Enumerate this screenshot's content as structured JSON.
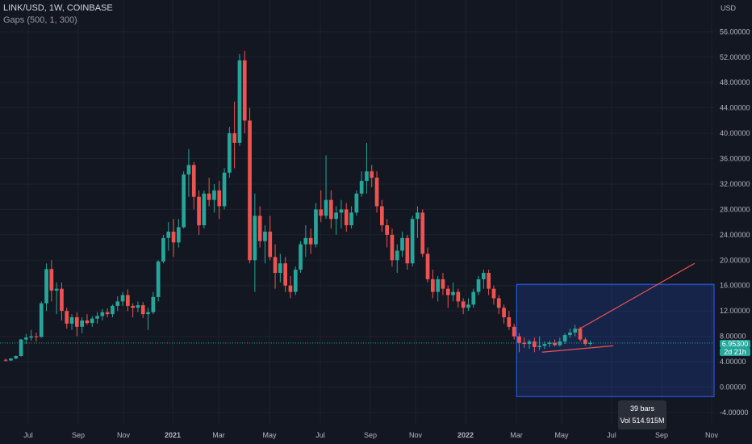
{
  "header": {
    "title": "LINK/USD, 1W, COINBASE",
    "indicator": "Gaps (500, 1, 300)"
  },
  "price_axis": {
    "currency": "USD",
    "last_price": "6.95300",
    "countdown": "2d 21h"
  },
  "range_tooltip": {
    "bars": "39 bars",
    "volume": "Vol 514.915M"
  },
  "colors": {
    "up": "#26a69a",
    "down": "#ef5350",
    "range_box": "#2962ff",
    "background": "#131722"
  },
  "chart_data": {
    "type": "candlestick",
    "title": "LINK/USD, 1W, COINBASE",
    "ylabel": "USD",
    "ylim": [
      -4,
      58
    ],
    "y_ticks": [
      "56.00000",
      "52.00000",
      "48.00000",
      "44.00000",
      "40.00000",
      "36.00000",
      "32.00000",
      "28.00000",
      "24.00000",
      "20.00000",
      "16.00000",
      "12.00000",
      "8.00000",
      "4.00000",
      "0.00000",
      "-4.00000"
    ],
    "x_tick_labels": [
      "Jul",
      "Sep",
      "Nov",
      "2021",
      "Mar",
      "May",
      "Jul",
      "Sep",
      "Nov",
      "2022",
      "Mar",
      "May",
      "Jul",
      "Sep",
      "Nov"
    ],
    "grid": true,
    "ohlc": [
      [
        4.3,
        4.5,
        4.0,
        4.2
      ],
      [
        4.2,
        4.6,
        4.1,
        4.5
      ],
      [
        4.5,
        5.0,
        4.4,
        4.9
      ],
      [
        4.9,
        7.6,
        4.8,
        7.5
      ],
      [
        7.5,
        8.4,
        6.8,
        7.8
      ],
      [
        7.8,
        9.0,
        7.3,
        8.0
      ],
      [
        8.0,
        8.6,
        7.2,
        7.9
      ],
      [
        7.9,
        13.5,
        7.8,
        13.2
      ],
      [
        13.2,
        19.5,
        12.0,
        18.6
      ],
      [
        18.6,
        20.0,
        13.5,
        15.2
      ],
      [
        15.2,
        16.5,
        11.5,
        15.5
      ],
      [
        15.5,
        16.5,
        10.5,
        12.0
      ],
      [
        12.0,
        12.5,
        9.2,
        10.0
      ],
      [
        10.0,
        11.5,
        9.0,
        11.0
      ],
      [
        11.0,
        11.8,
        8.0,
        9.5
      ],
      [
        9.5,
        11.0,
        8.5,
        10.5
      ],
      [
        10.5,
        11.5,
        9.8,
        10.1
      ],
      [
        10.1,
        11.2,
        9.5,
        10.8
      ],
      [
        10.8,
        11.8,
        10.0,
        11.2
      ],
      [
        11.2,
        12.3,
        10.5,
        11.8
      ],
      [
        11.8,
        12.4,
        11.0,
        11.5
      ],
      [
        11.5,
        13.0,
        11.0,
        12.8
      ],
      [
        12.8,
        14.3,
        12.0,
        13.5
      ],
      [
        13.5,
        15.0,
        12.8,
        14.5
      ],
      [
        14.5,
        15.4,
        12.0,
        12.8
      ],
      [
        12.8,
        13.2,
        11.0,
        12.5
      ],
      [
        12.5,
        13.5,
        11.8,
        12.9
      ],
      [
        12.9,
        13.4,
        10.9,
        11.5
      ],
      [
        11.5,
        12.5,
        9.0,
        11.8
      ],
      [
        11.8,
        15.0,
        11.5,
        14.2
      ],
      [
        14.2,
        20.0,
        13.5,
        19.8
      ],
      [
        19.8,
        24.0,
        19.5,
        23.5
      ],
      [
        23.5,
        26.0,
        21.5,
        24.5
      ],
      [
        24.5,
        26.5,
        20.5,
        22.8
      ],
      [
        22.8,
        26.5,
        22.0,
        25.2
      ],
      [
        25.2,
        34.0,
        25.0,
        33.5
      ],
      [
        33.5,
        37.5,
        30.0,
        35.0
      ],
      [
        35.0,
        35.5,
        28.0,
        30.0
      ],
      [
        30.0,
        31.0,
        24.0,
        25.5
      ],
      [
        25.5,
        31.0,
        25.0,
        30.5
      ],
      [
        30.5,
        33.0,
        28.5,
        29.5
      ],
      [
        29.5,
        32.0,
        27.5,
        31.0
      ],
      [
        31.0,
        32.5,
        26.5,
        28.5
      ],
      [
        28.5,
        34.5,
        28.0,
        33.8
      ],
      [
        33.8,
        41.0,
        33.0,
        40.0
      ],
      [
        40.0,
        45.0,
        34.5,
        38.5
      ],
      [
        38.5,
        52.5,
        38.0,
        51.5
      ],
      [
        51.5,
        53.0,
        40.0,
        42.0
      ],
      [
        42.0,
        44.0,
        19.5,
        20.0
      ],
      [
        20.0,
        30.5,
        15.0,
        27.0
      ],
      [
        27.0,
        28.5,
        22.0,
        23.0
      ],
      [
        23.0,
        25.5,
        19.5,
        24.5
      ],
      [
        24.5,
        27.0,
        20.0,
        20.5
      ],
      [
        20.5,
        22.5,
        15.5,
        18.0
      ],
      [
        18.0,
        21.0,
        16.5,
        19.5
      ],
      [
        19.5,
        20.5,
        15.0,
        16.0
      ],
      [
        16.0,
        17.5,
        14.0,
        15.0
      ],
      [
        15.0,
        19.0,
        14.5,
        18.5
      ],
      [
        18.5,
        23.0,
        18.0,
        22.5
      ],
      [
        22.5,
        25.5,
        20.5,
        23.5
      ],
      [
        23.5,
        25.0,
        21.0,
        22.5
      ],
      [
        22.5,
        29.0,
        22.0,
        28.0
      ],
      [
        28.0,
        31.0,
        26.0,
        27.0
      ],
      [
        27.0,
        36.5,
        26.5,
        29.5
      ],
      [
        29.5,
        31.0,
        25.0,
        26.5
      ],
      [
        26.5,
        28.5,
        24.0,
        27.5
      ],
      [
        27.5,
        29.5,
        25.0,
        28.0
      ],
      [
        28.0,
        29.0,
        24.5,
        25.5
      ],
      [
        25.5,
        28.5,
        25.0,
        27.5
      ],
      [
        27.5,
        31.0,
        27.0,
        30.5
      ],
      [
        30.5,
        34.0,
        30.0,
        32.5
      ],
      [
        32.5,
        38.5,
        30.5,
        34.0
      ],
      [
        34.0,
        35.0,
        31.5,
        33.0
      ],
      [
        33.0,
        34.0,
        27.5,
        28.5
      ],
      [
        28.5,
        29.5,
        24.5,
        25.5
      ],
      [
        25.5,
        26.5,
        22.0,
        24.0
      ],
      [
        24.0,
        25.0,
        19.0,
        20.0
      ],
      [
        20.0,
        22.5,
        18.0,
        21.5
      ],
      [
        21.5,
        24.5,
        20.5,
        23.5
      ],
      [
        23.5,
        24.0,
        18.5,
        19.5
      ],
      [
        19.5,
        27.0,
        19.0,
        26.5
      ],
      [
        26.5,
        28.5,
        23.5,
        27.5
      ],
      [
        27.5,
        28.0,
        20.5,
        21.0
      ],
      [
        21.0,
        22.0,
        16.5,
        17.0
      ],
      [
        17.0,
        18.5,
        14.0,
        15.0
      ],
      [
        15.0,
        17.5,
        13.5,
        17.0
      ],
      [
        17.0,
        18.0,
        14.5,
        15.5
      ],
      [
        15.5,
        16.0,
        12.5,
        14.5
      ],
      [
        14.5,
        16.5,
        13.5,
        15.0
      ],
      [
        15.0,
        15.5,
        12.5,
        13.5
      ],
      [
        13.5,
        14.0,
        11.5,
        12.5
      ],
      [
        12.5,
        14.0,
        12.0,
        13.0
      ],
      [
        13.0,
        15.5,
        12.5,
        15.0
      ],
      [
        15.0,
        17.5,
        14.5,
        17.0
      ],
      [
        17.0,
        18.5,
        15.5,
        18.0
      ],
      [
        18.0,
        18.5,
        14.5,
        15.5
      ],
      [
        15.5,
        16.0,
        13.0,
        14.0
      ],
      [
        14.0,
        14.5,
        11.5,
        12.5
      ],
      [
        12.5,
        13.0,
        10.0,
        11.0
      ],
      [
        11.0,
        12.0,
        9.0,
        9.5
      ],
      [
        9.5,
        10.0,
        7.5,
        8.0
      ],
      [
        8.0,
        8.5,
        5.5,
        7.0
      ],
      [
        7.0,
        7.8,
        6.2,
        6.8
      ],
      [
        6.8,
        7.5,
        6.0,
        7.2
      ],
      [
        7.2,
        7.8,
        5.5,
        6.3
      ],
      [
        6.3,
        8.0,
        5.8,
        6.5
      ],
      [
        6.5,
        7.2,
        6.0,
        6.8
      ],
      [
        6.8,
        7.3,
        6.3,
        7.0
      ],
      [
        7.0,
        7.5,
        6.4,
        6.6
      ],
      [
        6.6,
        7.8,
        6.4,
        7.2
      ],
      [
        7.2,
        8.5,
        6.8,
        8.2
      ],
      [
        8.2,
        9.2,
        7.8,
        8.6
      ],
      [
        8.6,
        9.8,
        8.0,
        9.2
      ],
      [
        9.2,
        9.5,
        7.2,
        7.5
      ],
      [
        7.5,
        7.8,
        6.5,
        6.8
      ],
      [
        6.8,
        7.3,
        6.5,
        6.95
      ]
    ],
    "annotations": {
      "horizontal_line_price": 6.953,
      "range_box": {
        "price_low": -1.5,
        "price_high": 16.2,
        "first_bar": 101,
        "bars": "39 bars",
        "volume": "Vol 514.915M"
      },
      "trend_lines": [
        {
          "from": [
            113,
            9.0
          ],
          "to": [
            136,
            19.5
          ],
          "color": "#ef5350"
        },
        {
          "from": [
            106,
            5.5
          ],
          "to": [
            120,
            6.5
          ],
          "color": "#ef5350"
        }
      ]
    }
  }
}
